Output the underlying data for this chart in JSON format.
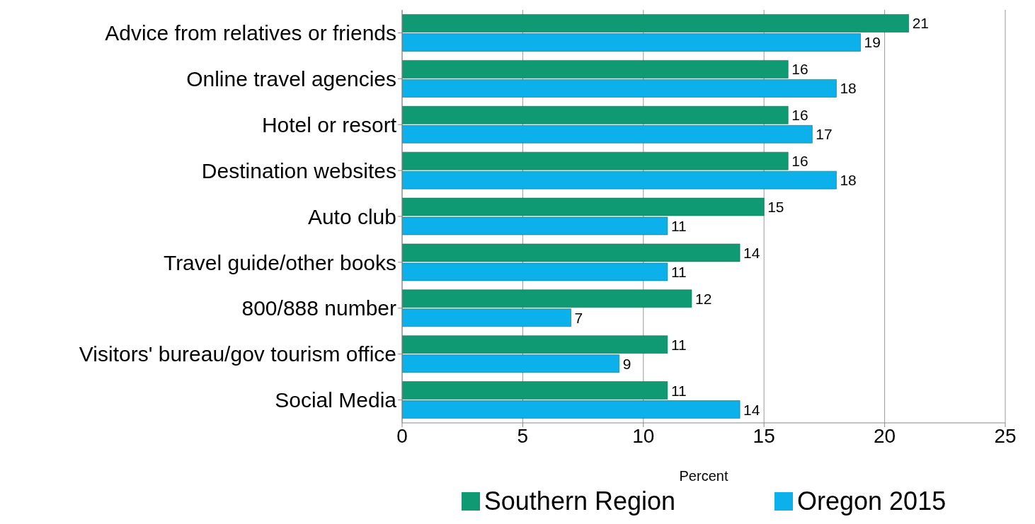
{
  "chart_data": {
    "type": "bar",
    "orientation": "horizontal",
    "xlabel": "Percent",
    "categories": [
      "Advice from relatives or friends",
      "Online travel agencies",
      "Hotel or resort",
      "Destination websites",
      "Auto club",
      "Travel guide/other books",
      "800/888 number",
      "Visitors' bureau/gov tourism office",
      "Social Media"
    ],
    "series": [
      {
        "name": "Southern Region",
        "color": "#109a74",
        "values": [
          21,
          16,
          16,
          16,
          15,
          14,
          12,
          11,
          11
        ]
      },
      {
        "name": "Oregon 2015",
        "color": "#0cb0ea",
        "values": [
          19,
          18,
          17,
          18,
          11,
          11,
          7,
          9,
          14
        ]
      }
    ],
    "xlim": [
      0,
      25
    ],
    "xticks": [
      0,
      5,
      10,
      15,
      20,
      25
    ],
    "grid": "x",
    "legend": "bottom",
    "data_labels": true
  }
}
